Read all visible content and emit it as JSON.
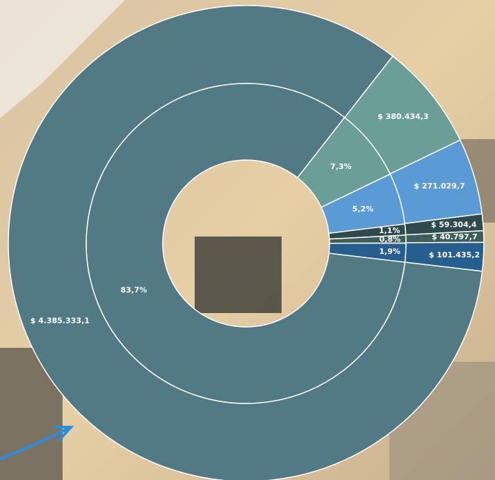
{
  "chart_data": {
    "type": "sunburst",
    "colors": [
      "#527a85",
      "#6a9e97",
      "#5b9bd5",
      "#2f4a4f",
      "#3d5e5a",
      "#265e8f"
    ],
    "rings": [
      {
        "values": [
          83.7,
          7.3,
          5.2,
          1.1,
          0.8,
          1.9
        ],
        "value_labels": [
          "83,7%",
          "7,3%",
          "5,2%",
          "1,1%",
          "0,8%",
          "1,9%"
        ]
      },
      {
        "values": [
          4385333.1,
          380434.3,
          271029.7,
          59304.4,
          40797.7,
          101435.2
        ],
        "value_labels": [
          "$ 4.385.333,1",
          "$ 380.434,3",
          "$ 271.029,7",
          "$ 59.304,4",
          "$ 40.797,7",
          "$ 101.435,2"
        ]
      }
    ]
  }
}
